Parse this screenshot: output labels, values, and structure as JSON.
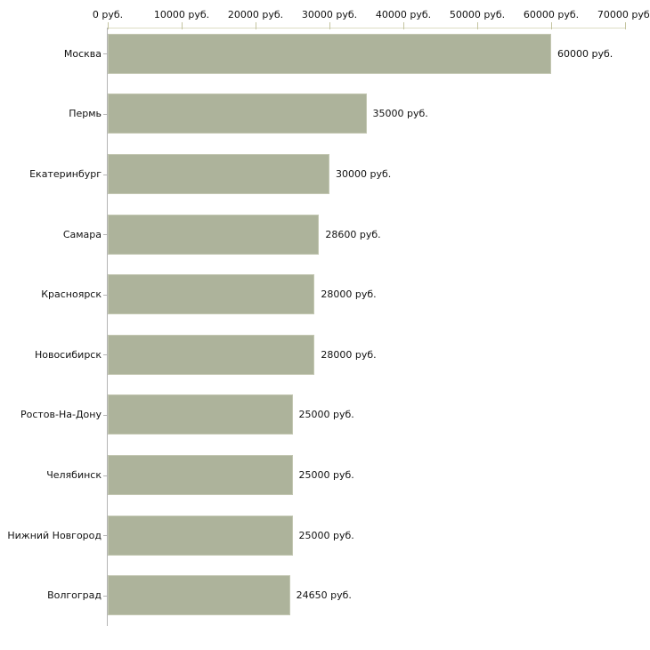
{
  "chart_data": {
    "type": "bar",
    "orientation": "horizontal",
    "title": "",
    "xlabel": "",
    "ylabel": "",
    "xlim": [
      0,
      70000
    ],
    "grid": false,
    "legend": false,
    "categories": [
      "Москва",
      "Пермь",
      "Екатеринбург",
      "Самара",
      "Красноярск",
      "Новосибирск",
      "Ростов-На-Дону",
      "Челябинск",
      "Нижний Новгород",
      "Волгоград"
    ],
    "values": [
      60000,
      35000,
      30000,
      28600,
      28000,
      28000,
      25000,
      25000,
      25000,
      24650
    ],
    "value_labels": [
      "60000 руб.",
      "35000 руб.",
      "30000 руб.",
      "28600 руб.",
      "28000 руб.",
      "28000 руб.",
      "25000 руб.",
      "25000 руб.",
      "25000 руб.",
      "24650 руб."
    ],
    "x_ticks": [
      0,
      10000,
      20000,
      30000,
      40000,
      50000,
      60000,
      70000
    ],
    "x_tick_labels": [
      "0 руб.",
      "10000 руб.",
      "20000 руб.",
      "30000 руб.",
      "40000 руб.",
      "50000 руб.",
      "60000 руб.",
      "70000 руб."
    ],
    "colors": {
      "bar_fill": "#adb39b",
      "bar_border": "#c3c7b2",
      "x_axis_line": "#dcdcc4",
      "x_tick": "#c4c4a0",
      "y_axis_line": "#b5b5b5",
      "category_tick": "#b5b5b5",
      "text": "#111111",
      "background": "#ffffff"
    }
  }
}
